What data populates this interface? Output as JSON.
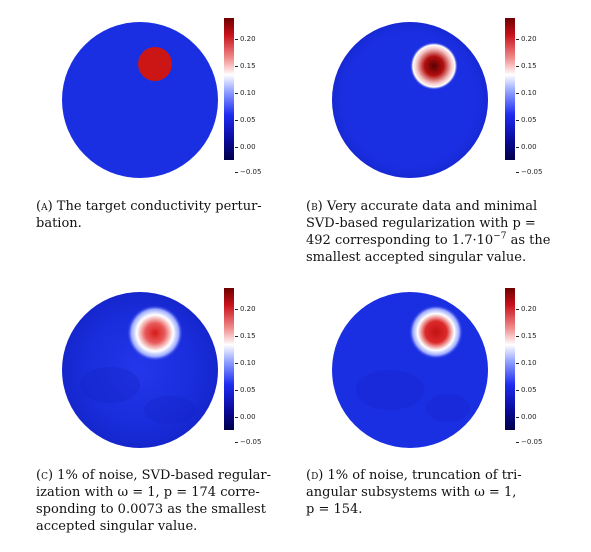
{
  "panels": [
    {
      "tag": "(a)",
      "caption": "The target conductivity perturbation.",
      "caption_lines": [
        "The target conductivity pertur-",
        "bation."
      ],
      "colorbar_ticks": [
        "0.20",
        "0.15",
        "0.10",
        "0.05",
        "0.00",
        "−0.05"
      ]
    },
    {
      "tag": "(b)",
      "caption_lines": [
        "Very accurate data and minimal",
        "SVD-based regularization with p =",
        "492 corresponding to 1.7·10",
        "−7",
        " as the",
        "smallest accepted singular value."
      ],
      "colorbar_ticks": [
        "0.20",
        "0.15",
        "0.10",
        "0.05",
        "0.00",
        "−0.05"
      ]
    },
    {
      "tag": "(c)",
      "caption_lines": [
        "1% of noise, SVD-based regular-",
        "ization with ω = 1, p = 174 corre-",
        "sponding to 0.0073 as the smallest",
        "accepted singular value."
      ],
      "colorbar_ticks": [
        "0.20",
        "0.15",
        "0.10",
        "0.05",
        "0.00",
        "−0.05"
      ]
    },
    {
      "tag": "(d)",
      "caption_lines": [
        "1% of noise, truncation of tri-",
        "angular subsystems with ω = 1,",
        "p = 154."
      ],
      "colorbar_ticks": [
        "0.20",
        "0.15",
        "0.10",
        "0.05",
        "0.00",
        "−0.05"
      ]
    }
  ],
  "colors": {
    "background_blue": "#1a2fe0",
    "inclusion_red": "#cc1515",
    "colorbar_top": "#7a0000",
    "colorbar_mid": "#ffffff",
    "colorbar_bottom": "#00004a"
  }
}
